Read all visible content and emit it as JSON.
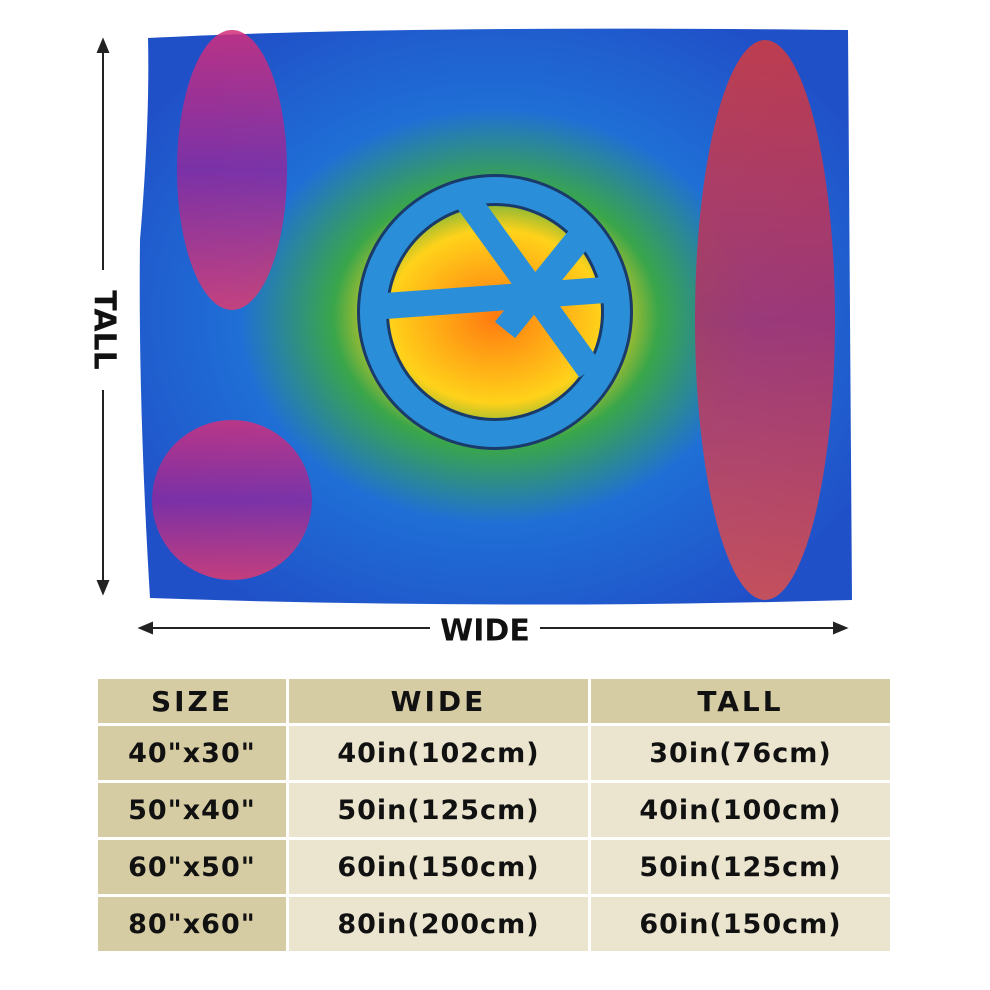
{
  "dimensions": {
    "tall": "TALL",
    "wide": "WIDE"
  },
  "table": {
    "header": [
      "SIZE",
      "WIDE",
      "TALL"
    ],
    "rows": [
      [
        "40\"x30\"",
        "40in(102cm)",
        "30in(76cm)"
      ],
      [
        "50\"x40\"",
        "50in(125cm)",
        "40in(100cm)"
      ],
      [
        "60\"x50\"",
        "60in(150cm)",
        "50in(125cm)"
      ],
      [
        "80\"x60\"",
        "80in(200cm)",
        "60in(150cm)"
      ]
    ]
  }
}
